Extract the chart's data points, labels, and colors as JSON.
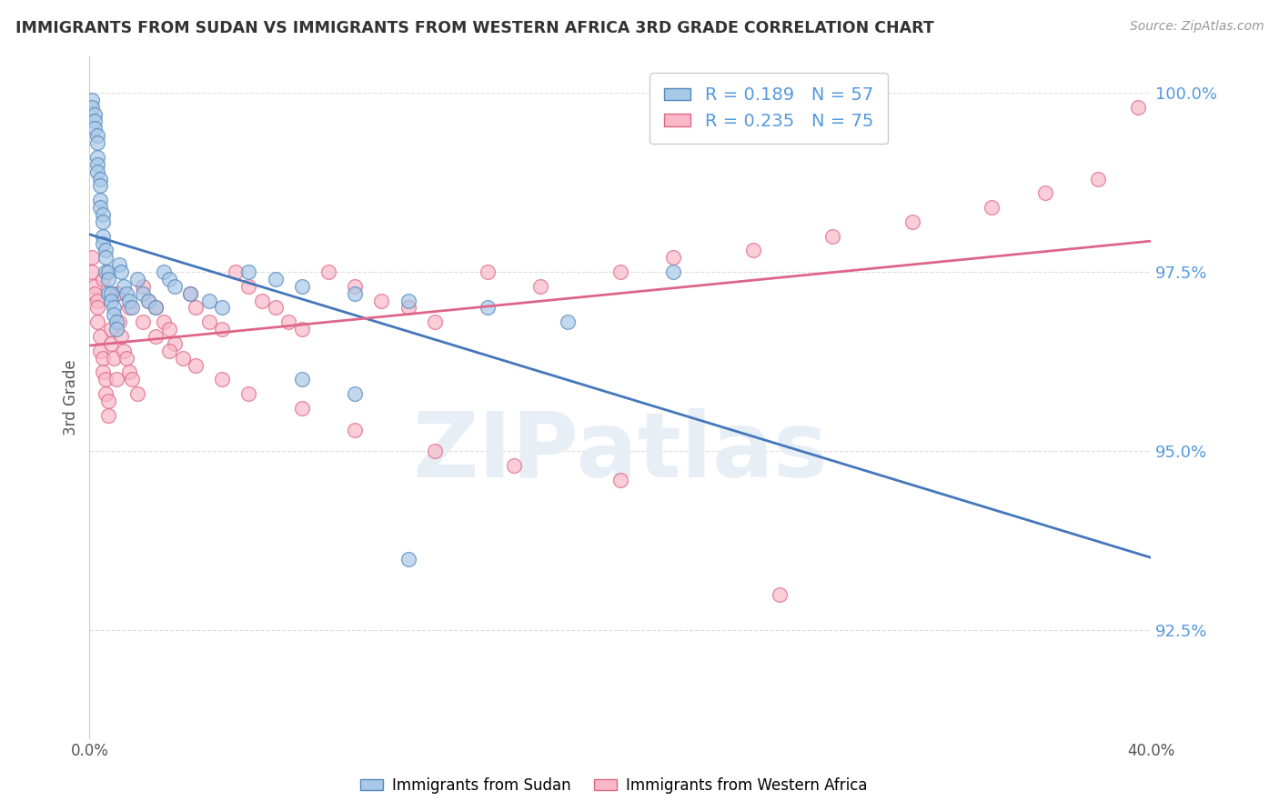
{
  "title": "IMMIGRANTS FROM SUDAN VS IMMIGRANTS FROM WESTERN AFRICA 3RD GRADE CORRELATION CHART",
  "source": "Source: ZipAtlas.com",
  "ylabel": "3rd Grade",
  "xlim": [
    0.0,
    0.4
  ],
  "ylim": [
    0.91,
    1.005
  ],
  "legend_label1": "Immigrants from Sudan",
  "legend_label2": "Immigrants from Western Africa",
  "r1": 0.189,
  "n1": 57,
  "r2": 0.235,
  "n2": 75,
  "color_blue_fill": "#a8c8e8",
  "color_blue_edge": "#5588bb",
  "color_pink_fill": "#f8b8c8",
  "color_pink_edge": "#dd6688",
  "color_blue_line": "#4477bb",
  "color_pink_line": "#dd6688",
  "watermark_color": "#e8eef5",
  "background_color": "#ffffff",
  "grid_color": "#dddddd",
  "ytick_color": "#5599dd",
  "ytick_positions": [
    0.925,
    0.95,
    0.975,
    1.0
  ],
  "ytick_labels": [
    "92.5%",
    "95.0%",
    "97.5%",
    "100.0%"
  ],
  "blue_x": [
    0.001,
    0.001,
    0.002,
    0.002,
    0.002,
    0.003,
    0.003,
    0.003,
    0.003,
    0.003,
    0.004,
    0.004,
    0.004,
    0.004,
    0.005,
    0.005,
    0.005,
    0.005,
    0.006,
    0.006,
    0.006,
    0.007,
    0.007,
    0.007,
    0.008,
    0.008,
    0.009,
    0.009,
    0.01,
    0.01,
    0.011,
    0.012,
    0.013,
    0.014,
    0.015,
    0.016,
    0.018,
    0.02,
    0.022,
    0.025,
    0.028,
    0.03,
    0.032,
    0.038,
    0.045,
    0.05,
    0.06,
    0.07,
    0.08,
    0.1,
    0.12,
    0.15,
    0.18,
    0.22,
    0.08,
    0.1,
    0.12
  ],
  "blue_y": [
    0.999,
    0.998,
    0.997,
    0.996,
    0.995,
    0.994,
    0.993,
    0.991,
    0.99,
    0.989,
    0.988,
    0.987,
    0.985,
    0.984,
    0.983,
    0.982,
    0.98,
    0.979,
    0.978,
    0.977,
    0.975,
    0.975,
    0.974,
    0.972,
    0.972,
    0.971,
    0.97,
    0.969,
    0.968,
    0.967,
    0.976,
    0.975,
    0.973,
    0.972,
    0.971,
    0.97,
    0.974,
    0.972,
    0.971,
    0.97,
    0.975,
    0.974,
    0.973,
    0.972,
    0.971,
    0.97,
    0.975,
    0.974,
    0.973,
    0.972,
    0.971,
    0.97,
    0.968,
    0.975,
    0.96,
    0.958,
    0.935
  ],
  "pink_x": [
    0.001,
    0.001,
    0.002,
    0.002,
    0.003,
    0.003,
    0.003,
    0.004,
    0.004,
    0.005,
    0.005,
    0.006,
    0.006,
    0.007,
    0.007,
    0.008,
    0.008,
    0.009,
    0.01,
    0.01,
    0.011,
    0.012,
    0.013,
    0.014,
    0.015,
    0.016,
    0.018,
    0.02,
    0.022,
    0.025,
    0.028,
    0.03,
    0.032,
    0.035,
    0.038,
    0.04,
    0.045,
    0.05,
    0.055,
    0.06,
    0.065,
    0.07,
    0.075,
    0.08,
    0.09,
    0.1,
    0.11,
    0.12,
    0.13,
    0.15,
    0.17,
    0.2,
    0.22,
    0.25,
    0.28,
    0.31,
    0.34,
    0.36,
    0.38,
    0.395,
    0.005,
    0.01,
    0.015,
    0.02,
    0.025,
    0.03,
    0.04,
    0.05,
    0.06,
    0.08,
    0.1,
    0.13,
    0.16,
    0.2,
    0.26
  ],
  "pink_y": [
    0.977,
    0.975,
    0.973,
    0.972,
    0.971,
    0.97,
    0.968,
    0.966,
    0.964,
    0.963,
    0.961,
    0.96,
    0.958,
    0.957,
    0.955,
    0.967,
    0.965,
    0.963,
    0.972,
    0.96,
    0.968,
    0.966,
    0.964,
    0.963,
    0.961,
    0.96,
    0.958,
    0.973,
    0.971,
    0.97,
    0.968,
    0.967,
    0.965,
    0.963,
    0.972,
    0.97,
    0.968,
    0.967,
    0.975,
    0.973,
    0.971,
    0.97,
    0.968,
    0.967,
    0.975,
    0.973,
    0.971,
    0.97,
    0.968,
    0.975,
    0.973,
    0.975,
    0.977,
    0.978,
    0.98,
    0.982,
    0.984,
    0.986,
    0.988,
    0.998,
    0.974,
    0.972,
    0.97,
    0.968,
    0.966,
    0.964,
    0.962,
    0.96,
    0.958,
    0.956,
    0.953,
    0.95,
    0.948,
    0.946,
    0.93
  ]
}
